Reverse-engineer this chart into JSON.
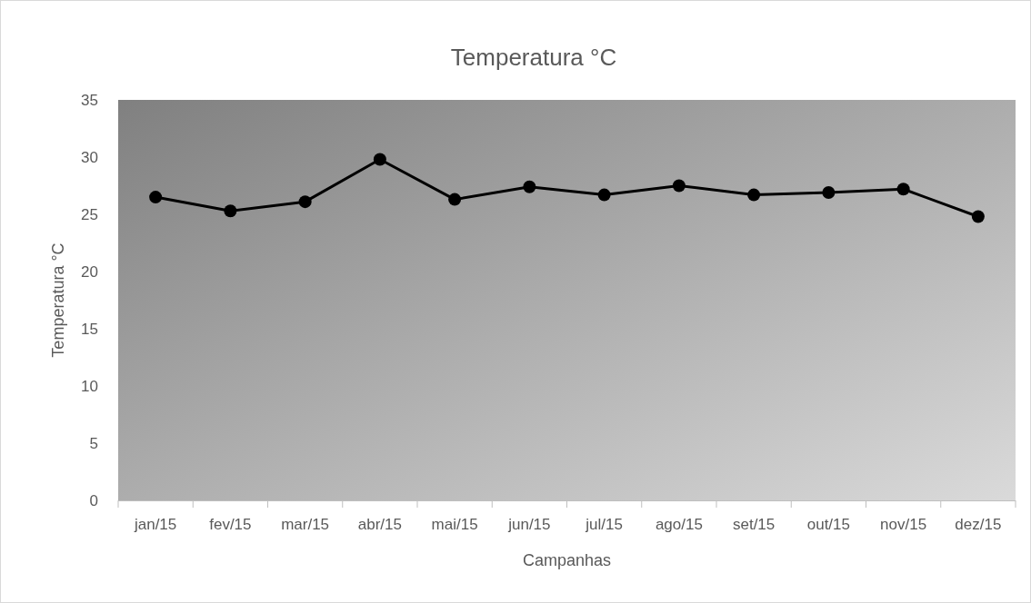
{
  "chart_data": {
    "type": "line",
    "title": "Temperatura °C",
    "xlabel": "Campanhas",
    "ylabel": "Temperatura °C",
    "categories": [
      "jan/15",
      "fev/15",
      "mar/15",
      "abr/15",
      "mai/15",
      "jun/15",
      "jul/15",
      "ago/15",
      "set/15",
      "out/15",
      "nov/15",
      "dez/15"
    ],
    "series": [
      {
        "color": "#000000",
        "values": [
          26.5,
          25.3,
          26.1,
          29.8,
          26.3,
          27.4,
          26.7,
          27.5,
          26.7,
          26.9,
          27.2,
          24.8
        ]
      }
    ],
    "ylim": [
      0,
      35
    ],
    "yticks": [
      0,
      5,
      10,
      15,
      20,
      25,
      30,
      35
    ],
    "grid": false,
    "marker": "circle",
    "line_style": "solid"
  }
}
